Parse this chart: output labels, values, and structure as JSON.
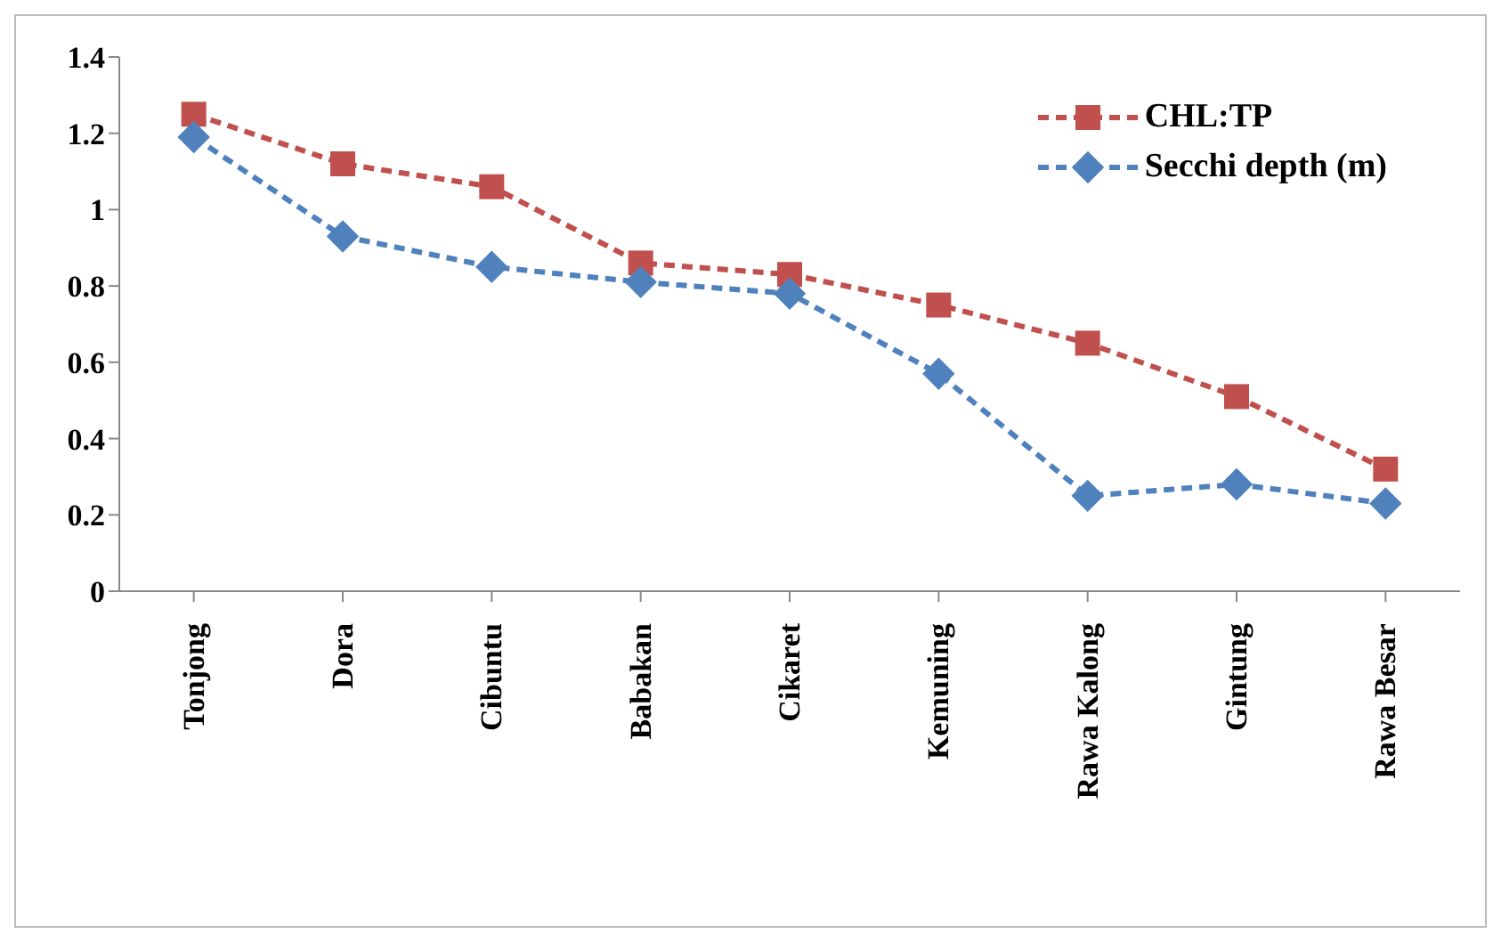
{
  "chart_data": {
    "type": "line",
    "categories": [
      "Tonjong",
      "Dora",
      "Cibuntu",
      "Babakan",
      "Cikaret",
      "Kemuning",
      "Rawa Kalong",
      "Gintung",
      "Rawa Besar"
    ],
    "series": [
      {
        "name": "CHL:TP",
        "color": "#c0504d",
        "marker": "square",
        "values": [
          1.25,
          1.12,
          1.06,
          0.86,
          0.83,
          0.75,
          0.65,
          0.51,
          0.32
        ]
      },
      {
        "name": "Secchi depth (m)",
        "color": "#4f81bd",
        "marker": "diamond",
        "values": [
          1.19,
          0.93,
          0.85,
          0.81,
          0.78,
          0.57,
          0.25,
          0.28,
          0.23
        ]
      }
    ],
    "ylim": [
      0,
      1.4
    ],
    "yticks": [
      0,
      0.2,
      0.4,
      0.6,
      0.8,
      1,
      1.2,
      1.4
    ],
    "line_style": "dashed",
    "grid": false,
    "legend": "top right"
  }
}
